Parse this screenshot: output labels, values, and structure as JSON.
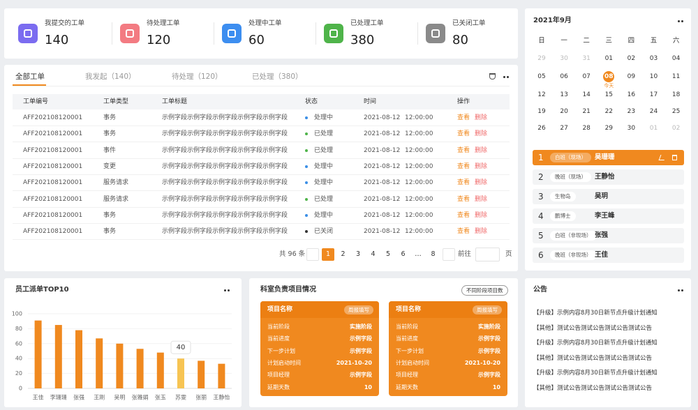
{
  "stats": [
    {
      "label": "我提交的工单",
      "value": 140,
      "color": "#7b6cf0"
    },
    {
      "label": "待处理工单",
      "value": 120,
      "color": "#f37b82"
    },
    {
      "label": "处理中工单",
      "value": 60,
      "color": "#3d8ef0"
    },
    {
      "label": "已处理工单",
      "value": 380,
      "color": "#4fb44a"
    },
    {
      "label": "已关闭工单",
      "value": 80,
      "color": "#8a8a8a"
    }
  ],
  "tabs": [
    "全部工单",
    "我发起（140）",
    "待处理（120）",
    "已处理（380）"
  ],
  "table": {
    "headers": [
      "工单编号",
      "工单类型",
      "工单标题",
      "状态",
      "时间",
      "操作"
    ],
    "rows": [
      [
        "AFF202108120001",
        "事务",
        "示例字段示例字段示例字段示例字段示例字段",
        "处理中",
        "2021-08-12",
        "12:00:00",
        "查看",
        "删除"
      ],
      [
        "AFF202108120001",
        "事务",
        "示例字段示例字段示例字段示例字段示例字段",
        "已处理",
        "2021-08-12",
        "12:00:00",
        "查看",
        "删除"
      ],
      [
        "AFF202108120001",
        "事件",
        "示例字段示例字段示例字段示例字段示例字段",
        "已处理",
        "2021-08-12",
        "12:00:00",
        "查看",
        "删除"
      ],
      [
        "AFF202108120001",
        "变更",
        "示例字段示例字段示例字段示例字段示例字段",
        "处理中",
        "2021-08-12",
        "12:00:00",
        "查看",
        "删除"
      ],
      [
        "AFF202108120001",
        "服务请求",
        "示例字段示例字段示例字段示例字段示例字段",
        "处理中",
        "2021-08-12",
        "12:00:00",
        "查看",
        "删除"
      ],
      [
        "AFF202108120001",
        "服务请求",
        "示例字段示例字段示例字段示例字段示例字段",
        "已处理",
        "2021-08-12",
        "12:00:00",
        "查看",
        "删除"
      ],
      [
        "AFF202108120001",
        "事务",
        "示例字段示例字段示例字段示例字段示例字段",
        "处理中",
        "2021-08-12",
        "12:00:00",
        "查看",
        "删除"
      ],
      [
        "AFF202108120001",
        "事务",
        "示例字段示例字段示例字段示例字段示例字段",
        "已关闭",
        "2021-08-12",
        "12:00:00",
        "查看",
        "删除"
      ]
    ],
    "status_dot_colors": [
      "#3b8fe6",
      "#4fb44a",
      "#4fb44a",
      "#3b8fe6",
      "#3b8fe6",
      "#4fb44a",
      "#3b8fe6",
      "#333333"
    ]
  },
  "pagination": {
    "total": "共 96 条",
    "pages": [
      1,
      2,
      3,
      4,
      5,
      6,
      "…",
      8
    ],
    "goto": "前往",
    "page_unit": "页"
  },
  "calendar": {
    "title": "2021年9月",
    "weekdays": [
      "日",
      "一",
      "二",
      "三",
      "四",
      "五",
      "六"
    ],
    "weeks": [
      [
        {
          "day": "29",
          "muted": true
        },
        {
          "day": "30",
          "muted": true
        },
        {
          "day": "31",
          "muted": true
        },
        "01",
        "02",
        "03",
        "04"
      ],
      [
        "05",
        "06",
        "07",
        {
          "day": "08",
          "today": "今天"
        },
        "09",
        "10",
        "11"
      ],
      [
        "12",
        "13",
        "14",
        "15",
        "16",
        "17",
        "18"
      ],
      [
        "19",
        "20",
        "21",
        "22",
        "23",
        "24",
        "25"
      ],
      [
        "26",
        "27",
        "28",
        "29",
        "30",
        {
          "day": "01",
          "muted": true
        },
        {
          "day": "02",
          "muted": true
        }
      ]
    ]
  },
  "schedule": {
    "active": 0,
    "items": [
      {
        "index": 1,
        "tag": "白班（现场）",
        "name": "吴珊珊"
      },
      {
        "index": 2,
        "tag": "晚班（现场）",
        "name": "王静怡"
      },
      {
        "index": 3,
        "tag": "生物岛",
        "name": "吴玥"
      },
      {
        "index": 4,
        "tag": "鹏博士",
        "name": "李王峰"
      },
      {
        "index": 5,
        "tag": "白班（非现场）",
        "name": "张强"
      },
      {
        "index": 6,
        "tag": "晚班（非现场）",
        "name": "王佳"
      }
    ]
  },
  "chart_data": {
    "type": "bar",
    "title": "员工派单TOP10",
    "categories": [
      "王佳",
      "李珊珊",
      "张强",
      "王刚",
      "吴明",
      "张雅娟",
      "张玉",
      "苏雯",
      "张丽",
      "王静怡"
    ],
    "values": [
      91,
      85,
      78,
      67,
      60,
      53,
      48,
      40,
      37,
      33
    ],
    "colors": [
      "#f0891f",
      "#f0891f",
      "#f0891f",
      "#f0891f",
      "#f0891f",
      "#f0891f",
      "#f0891f",
      "#f7c453",
      "#f0891f",
      "#f0891f"
    ],
    "ylim": [
      0,
      100
    ],
    "yticks": [
      0,
      20,
      40,
      60,
      80,
      100
    ],
    "grid": true
  },
  "projects": {
    "title": "科室负责项目情况",
    "button": "不同阶段项目数",
    "cards": [
      {
        "header": "项目名称",
        "button": "周报填写",
        "rows": [
          [
            "当前阶段",
            "实施阶段"
          ],
          [
            "当前进度",
            "示例字段"
          ],
          [
            "下一步计划",
            "示例字段"
          ],
          [
            "计划启动时间",
            "2021-10-20"
          ],
          [
            "项目经理",
            "示例字段"
          ],
          [
            "延期天数",
            "10"
          ]
        ]
      },
      {
        "header": "项目名称",
        "button": "周报填写",
        "rows": [
          [
            "当前阶段",
            "实施阶段"
          ],
          [
            "当前进度",
            "示例字段"
          ],
          [
            "下一步计划",
            "示例字段"
          ],
          [
            "计划启动时间",
            "2021-10-20"
          ],
          [
            "项目经理",
            "示例字段"
          ],
          [
            "延期天数",
            "10"
          ]
        ]
      }
    ]
  },
  "notices": {
    "title": "公告",
    "items": [
      "【升级】示例内容8月30日新节点升级计划通知",
      "【其他】测试公告测试公告测试公告测试公告",
      "【升级】示例内容8月30日新节点升级计划通知",
      "【其他】测试公告测试公告测试公告测试公告",
      "【升级】示例内容8月30日新节点升级计划通知",
      "【其他】测试公告测试公告测试公告测试公告"
    ]
  }
}
